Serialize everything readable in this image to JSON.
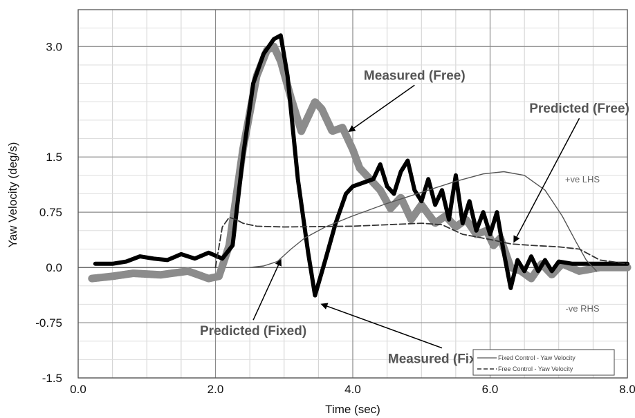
{
  "chart_data": {
    "type": "line",
    "xlabel": "Time (sec)",
    "ylabel": "Yaw Velocity (deg/s)",
    "xlim": [
      0.0,
      8.0
    ],
    "ylim": [
      -1.5,
      3.5
    ],
    "x_ticks": [
      {
        "value": 0.0,
        "label": "0.0"
      },
      {
        "value": 2.0,
        "label": "2.0"
      },
      {
        "value": 4.0,
        "label": "4.0"
      },
      {
        "value": 6.0,
        "label": "6.0"
      },
      {
        "value": 8.0,
        "label": "8.0"
      }
    ],
    "y_ticks": [
      {
        "value": -1.5,
        "label": "-1.5"
      },
      {
        "value": -0.75,
        "label": "-0.75"
      },
      {
        "value": 0.0,
        "label": "0.0"
      },
      {
        "value": 0.75,
        "label": "0.75"
      },
      {
        "value": 1.5,
        "label": "1.5"
      },
      {
        "value": 3.0,
        "label": "3.0"
      }
    ],
    "grid": true,
    "legend_position": "bottom-right",
    "side_labels": {
      "positive": "+ve LHS",
      "negative": "-ve RHS"
    },
    "series": [
      {
        "id": "measured_free",
        "color": "#8c8c8c",
        "style": "thick-gray",
        "x": [
          0.2,
          0.5,
          0.8,
          1.2,
          1.6,
          1.9,
          2.05,
          2.2,
          2.4,
          2.6,
          2.75,
          2.85,
          2.95,
          3.1,
          3.25,
          3.45,
          3.55,
          3.7,
          3.85,
          4.0,
          4.1,
          4.25,
          4.4,
          4.55,
          4.7,
          4.85,
          5.0,
          5.2,
          5.35,
          5.5,
          5.65,
          5.8,
          5.95,
          6.05,
          6.15,
          6.3,
          6.45,
          6.6,
          6.75,
          6.9,
          7.05,
          7.3,
          7.6,
          8.0
        ],
        "y": [
          -0.15,
          -0.12,
          -0.08,
          -0.1,
          -0.05,
          -0.15,
          -0.12,
          0.3,
          1.6,
          2.6,
          2.95,
          3.0,
          2.8,
          2.3,
          1.85,
          2.25,
          2.15,
          1.85,
          1.9,
          1.6,
          1.35,
          1.2,
          1.05,
          0.8,
          0.95,
          0.65,
          0.85,
          0.6,
          0.7,
          0.55,
          0.65,
          0.45,
          0.5,
          0.3,
          0.4,
          0.0,
          -0.05,
          -0.15,
          0.05,
          -0.1,
          0.05,
          -0.05,
          0.0,
          0.0
        ]
      },
      {
        "id": "measured_fixed",
        "color": "#000000",
        "style": "thick-black",
        "x": [
          0.25,
          0.5,
          0.7,
          0.9,
          1.1,
          1.3,
          1.5,
          1.7,
          1.9,
          2.1,
          2.25,
          2.4,
          2.55,
          2.7,
          2.85,
          2.95,
          3.05,
          3.2,
          3.35,
          3.45,
          3.6,
          3.75,
          3.9,
          4.0,
          4.15,
          4.3,
          4.4,
          4.5,
          4.6,
          4.7,
          4.8,
          4.9,
          5.0,
          5.1,
          5.2,
          5.3,
          5.4,
          5.5,
          5.6,
          5.7,
          5.8,
          5.9,
          6.0,
          6.1,
          6.2,
          6.3,
          6.4,
          6.5,
          6.6,
          6.7,
          6.8,
          6.9,
          7.0,
          7.2,
          7.5,
          8.0
        ],
        "y": [
          0.05,
          0.05,
          0.08,
          0.15,
          0.12,
          0.1,
          0.18,
          0.12,
          0.2,
          0.12,
          0.3,
          1.5,
          2.5,
          2.9,
          3.1,
          3.15,
          2.6,
          1.2,
          0.2,
          -0.38,
          0.1,
          0.6,
          1.0,
          1.1,
          1.15,
          1.2,
          1.4,
          1.1,
          1.0,
          1.3,
          1.45,
          1.05,
          0.9,
          1.2,
          0.85,
          1.05,
          0.65,
          1.25,
          0.6,
          0.9,
          0.5,
          0.75,
          0.45,
          0.75,
          0.2,
          -0.28,
          0.1,
          -0.05,
          0.15,
          -0.05,
          0.1,
          -0.05,
          0.08,
          0.05,
          0.05,
          0.05
        ]
      },
      {
        "id": "predicted_fixed",
        "name": "Fixed Control - Yaw Velocity",
        "color": "#555555",
        "style": "solid-thin",
        "x": [
          2.5,
          2.7,
          2.9,
          3.1,
          3.3,
          3.6,
          4.0,
          4.5,
          5.0,
          5.5,
          5.9,
          6.2,
          6.5,
          6.8,
          7.05,
          7.25,
          7.4,
          7.55
        ],
        "y": [
          0.0,
          0.02,
          0.08,
          0.25,
          0.4,
          0.55,
          0.7,
          0.87,
          1.02,
          1.17,
          1.27,
          1.3,
          1.25,
          1.05,
          0.7,
          0.35,
          0.1,
          -0.05
        ]
      },
      {
        "id": "predicted_free",
        "name": "Free Control - Yaw Velocity",
        "color": "#333333",
        "style": "dashed",
        "x": [
          2.0,
          2.1,
          2.2,
          2.3,
          2.4,
          2.6,
          3.0,
          4.0,
          5.0,
          5.3,
          5.6,
          6.0,
          6.3,
          6.6,
          7.0,
          7.3,
          7.6,
          8.0
        ],
        "y": [
          0.0,
          0.55,
          0.68,
          0.65,
          0.6,
          0.56,
          0.55,
          0.56,
          0.6,
          0.58,
          0.45,
          0.38,
          0.32,
          0.3,
          0.28,
          0.25,
          0.1,
          0.05
        ]
      }
    ],
    "annotations": [
      {
        "text": "Measured (Free)",
        "x": 4.9,
        "y": 2.55,
        "arrow_to": [
          3.95,
          1.85
        ]
      },
      {
        "text": "Predicted (Free)",
        "x": 7.3,
        "y": 2.1,
        "arrow_to": [
          6.35,
          0.35
        ]
      },
      {
        "text": "Predicted (Fixed)",
        "x": 2.55,
        "y": -0.92,
        "arrow_to": [
          2.95,
          0.1
        ]
      },
      {
        "text": "Measured (Fixed)",
        "x": 5.3,
        "y": -1.3,
        "arrow_to": [
          3.55,
          -0.5
        ]
      }
    ]
  }
}
